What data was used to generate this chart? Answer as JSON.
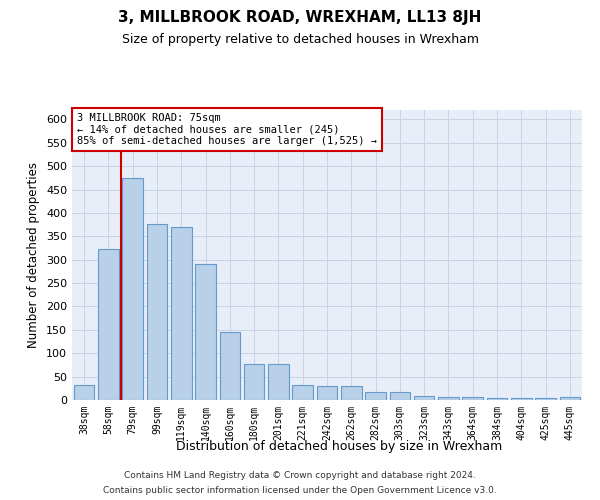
{
  "title": "3, MILLBROOK ROAD, WREXHAM, LL13 8JH",
  "subtitle": "Size of property relative to detached houses in Wrexham",
  "xlabel": "Distribution of detached houses by size in Wrexham",
  "ylabel": "Number of detached properties",
  "footer_line1": "Contains HM Land Registry data © Crown copyright and database right 2024.",
  "footer_line2": "Contains public sector information licensed under the Open Government Licence v3.0.",
  "categories": [
    "38sqm",
    "58sqm",
    "79sqm",
    "99sqm",
    "119sqm",
    "140sqm",
    "160sqm",
    "180sqm",
    "201sqm",
    "221sqm",
    "242sqm",
    "262sqm",
    "282sqm",
    "303sqm",
    "323sqm",
    "343sqm",
    "364sqm",
    "384sqm",
    "404sqm",
    "425sqm",
    "445sqm"
  ],
  "values": [
    32,
    322,
    474,
    377,
    370,
    290,
    145,
    78,
    78,
    33,
    30,
    29,
    17,
    17,
    9,
    7,
    6,
    5,
    5,
    5,
    6
  ],
  "bar_color": "#b8d0e8",
  "bar_edge_color": "#6699cc",
  "grid_color": "#c8d4e4",
  "background_color": "#e8eef8",
  "annotation_line1": "3 MILLBROOK ROAD: 75sqm",
  "annotation_line2": "← 14% of detached houses are smaller (245)",
  "annotation_line3": "85% of semi-detached houses are larger (1,525) →",
  "annotation_box_color": "#ffffff",
  "annotation_box_edge": "#cc0000",
  "red_line_x": 1.5,
  "ylim": [
    0,
    620
  ],
  "yticks": [
    0,
    50,
    100,
    150,
    200,
    250,
    300,
    350,
    400,
    450,
    500,
    550,
    600
  ]
}
